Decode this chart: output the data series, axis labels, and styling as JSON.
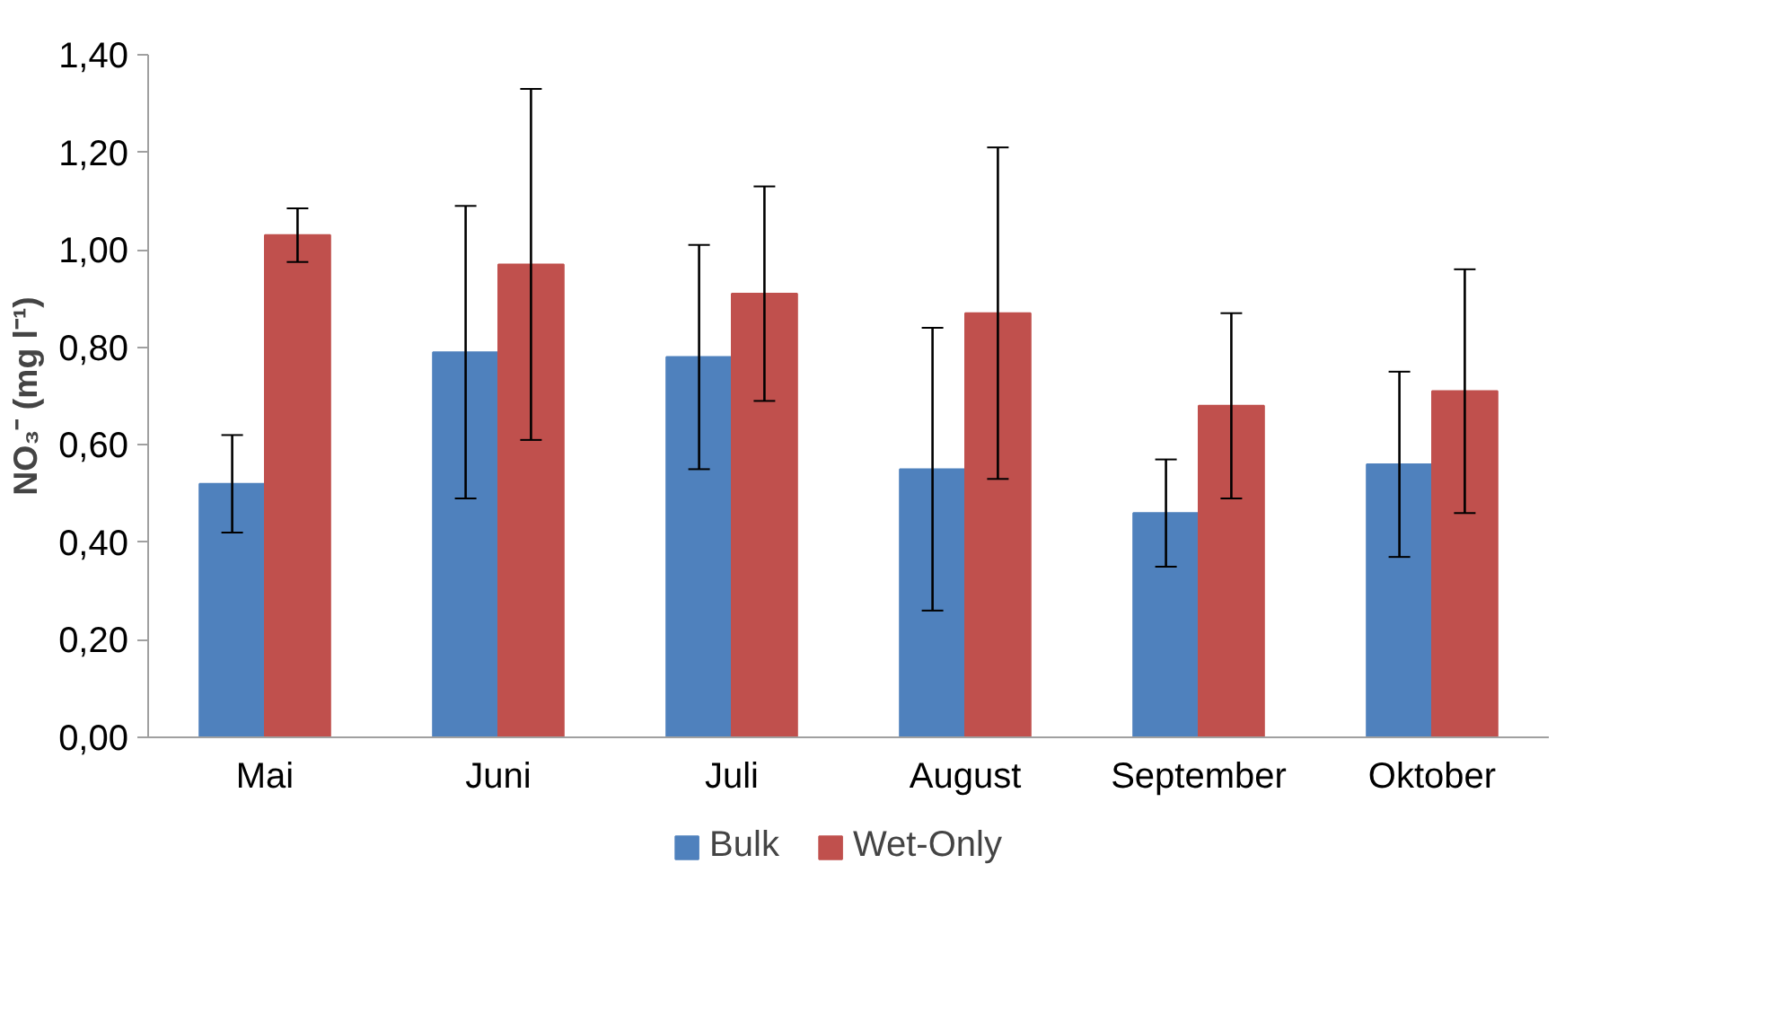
{
  "chart_data": {
    "type": "bar",
    "ylabel": "NO₃⁻ (mg l⁻¹)",
    "categories": [
      "Mai",
      "Juni",
      "Juli",
      "August",
      "September",
      "Oktober"
    ],
    "series": [
      {
        "name": "Bulk",
        "color": "#4f81bd",
        "values": [
          0.52,
          0.79,
          0.78,
          0.55,
          0.46,
          0.56
        ],
        "errors": [
          0.1,
          0.3,
          0.23,
          0.29,
          0.11,
          0.19
        ]
      },
      {
        "name": "Wet-Only",
        "color": "#c0504d",
        "values": [
          1.03,
          0.97,
          0.91,
          0.87,
          0.68,
          0.71
        ],
        "errors": [
          0.055,
          0.36,
          0.22,
          0.34,
          0.19,
          0.25
        ]
      }
    ],
    "ylim": [
      0,
      1.4
    ],
    "yticks": [
      {
        "value": 0,
        "label": "0,00"
      },
      {
        "value": 0.2,
        "label": "0,20"
      },
      {
        "value": 0.4,
        "label": "0,40"
      },
      {
        "value": 0.6,
        "label": "0,60"
      },
      {
        "value": 0.8,
        "label": "0,80"
      },
      {
        "value": 1.0,
        "label": "1,00"
      },
      {
        "value": 1.2,
        "label": "1,20"
      },
      {
        "value": 1.4,
        "label": "1,40"
      }
    ],
    "grid": false,
    "legend": "bottom"
  }
}
